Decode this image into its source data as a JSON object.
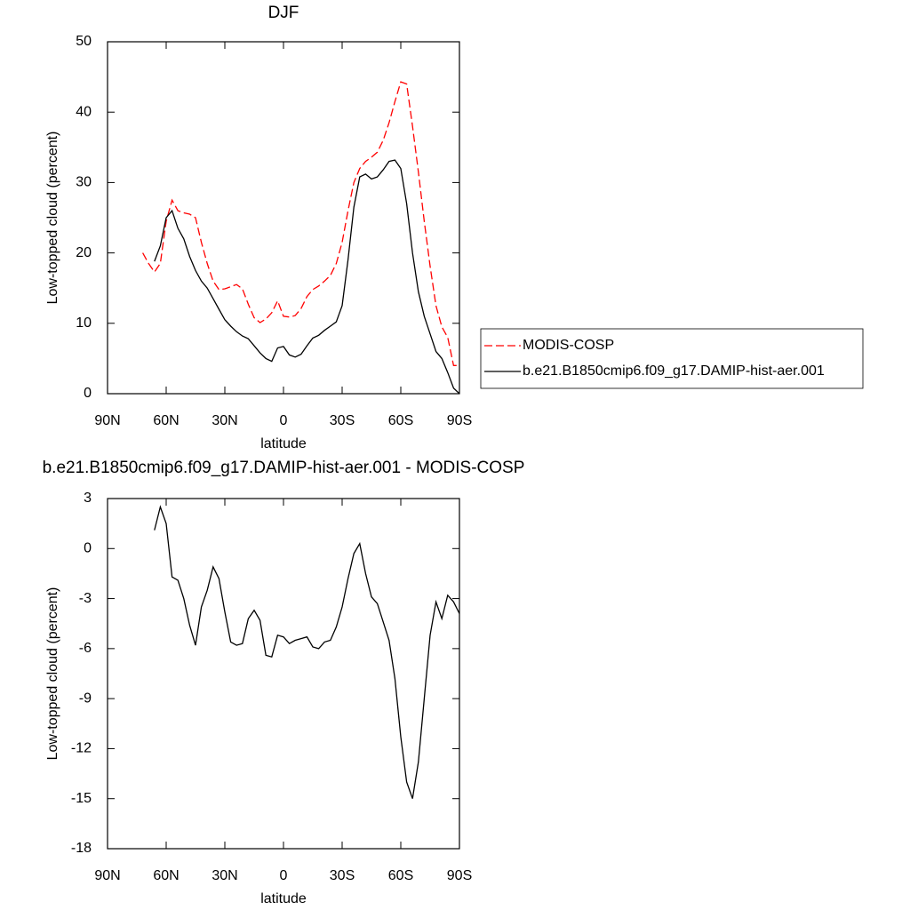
{
  "chart_data": [
    {
      "type": "line",
      "title": "DJF",
      "xlabel": "latitude",
      "ylabel": "Low-topped cloud (percent)",
      "x": [
        72,
        69,
        66,
        63,
        60,
        57,
        54,
        51,
        48,
        45,
        42,
        39,
        36,
        33,
        30,
        27,
        24,
        21,
        18,
        15,
        12,
        9,
        6,
        3,
        0,
        -3,
        -6,
        -9,
        -12,
        -15,
        -18,
        -21,
        -24,
        -27,
        -30,
        -33,
        -36,
        -39,
        -42,
        -45,
        -48,
        -51,
        -54,
        -57,
        -60,
        -63,
        -66,
        -69,
        -72,
        -75,
        -78,
        -81,
        -84,
        -87,
        -90
      ],
      "xlim": [
        90,
        -90
      ],
      "xticks": [
        {
          "value": 90,
          "label": "90N"
        },
        {
          "value": 60,
          "label": "60N"
        },
        {
          "value": 30,
          "label": "30N"
        },
        0,
        {
          "value": -30,
          "label": "30S"
        },
        {
          "value": -60,
          "label": "60S"
        },
        {
          "value": -90,
          "label": "90S"
        }
      ],
      "ylim": [
        0,
        50
      ],
      "yticks": [
        0,
        10,
        20,
        30,
        40,
        50
      ],
      "legend": "right",
      "series": [
        {
          "name": "MODIS-COSP",
          "color": "#ff0000",
          "dash": true,
          "values": [
            20,
            18.5,
            17.3,
            18.5,
            24.5,
            27.5,
            26,
            25.7,
            25.5,
            25,
            21.5,
            18.5,
            16,
            14.8,
            14.9,
            15.2,
            15.5,
            14.9,
            12.7,
            10.8,
            10.1,
            10.6,
            11.5,
            13.2,
            11,
            10.9,
            11.1,
            12.1,
            13.8,
            14.8,
            15.3,
            16,
            16.8,
            18.5,
            21.5,
            26,
            30,
            32,
            33,
            33.6,
            34.3,
            36,
            38.5,
            41.5,
            44.3,
            44,
            38,
            31.5,
            24.5,
            18.1,
            12.5,
            9.5,
            8,
            4,
            4
          ]
        },
        {
          "name": "b.e21.B1850cmip6.f09_g17.DAMIP-hist-aer.001",
          "color": "#000000",
          "dash": false,
          "values": [
            null,
            null,
            18.8,
            21,
            25,
            26,
            23.5,
            22,
            19.5,
            17.5,
            16,
            15,
            13.5,
            12,
            10.5,
            9.6,
            8.8,
            8.2,
            7.8,
            6.8,
            5.8,
            5,
            4.6,
            6.5,
            6.7,
            5.5,
            5.2,
            5.6,
            6.8,
            7.9,
            8.3,
            9,
            9.6,
            10.2,
            12.5,
            19,
            26.5,
            30.8,
            31.2,
            30.5,
            30.8,
            31.8,
            33,
            33.2,
            32,
            27,
            20,
            14.5,
            11,
            8.5,
            6,
            5,
            3,
            0.8,
            0
          ]
        }
      ]
    },
    {
      "type": "line",
      "title": "b.e21.B1850cmip6.f09_g17.DAMIP-hist-aer.001 - MODIS-COSP",
      "xlabel": "latitude",
      "ylabel": "Low-topped cloud (percent)",
      "x": [
        72,
        69,
        66,
        63,
        60,
        57,
        54,
        51,
        48,
        45,
        42,
        39,
        36,
        33,
        30,
        27,
        24,
        21,
        18,
        15,
        12,
        9,
        6,
        3,
        0,
        -3,
        -6,
        -9,
        -12,
        -15,
        -18,
        -21,
        -24,
        -27,
        -30,
        -33,
        -36,
        -39,
        -42,
        -45,
        -48,
        -51,
        -54,
        -57,
        -60,
        -63,
        -66,
        -69,
        -72,
        -75,
        -78,
        -81,
        -84,
        -87,
        -90
      ],
      "xlim": [
        90,
        -90
      ],
      "xticks": [
        {
          "value": 90,
          "label": "90N"
        },
        {
          "value": 60,
          "label": "60N"
        },
        {
          "value": 30,
          "label": "30N"
        },
        0,
        {
          "value": -30,
          "label": "30S"
        },
        {
          "value": -60,
          "label": "60S"
        },
        {
          "value": -90,
          "label": "90S"
        }
      ],
      "ylim": [
        -18,
        3
      ],
      "yticks": [
        3,
        0,
        -3,
        -6,
        -9,
        -12,
        -15,
        -18
      ],
      "series": [
        {
          "color": "#000000",
          "dash": false,
          "values": [
            null,
            null,
            1.1,
            2.5,
            1.5,
            -1.7,
            -1.9,
            -3,
            -4.6,
            -5.8,
            -3.5,
            -2.5,
            -1.1,
            -1.8,
            -3.8,
            -5.6,
            -5.8,
            -5.7,
            -4.2,
            -3.7,
            -4.3,
            -6.4,
            -6.5,
            -5.2,
            -5.3,
            -5.7,
            -5.5,
            -5.4,
            -5.3,
            -5.9,
            -6,
            -5.6,
            -5.5,
            -4.7,
            -3.5,
            -1.8,
            -0.3,
            0.3,
            -1.5,
            -2.9,
            -3.3,
            -4.4,
            -5.5,
            -7.8,
            -11.3,
            -14,
            -15,
            -12.8,
            -9,
            -5.2,
            -3.2,
            -4.2,
            -2.8,
            -3.2,
            -3.9
          ]
        }
      ]
    }
  ]
}
